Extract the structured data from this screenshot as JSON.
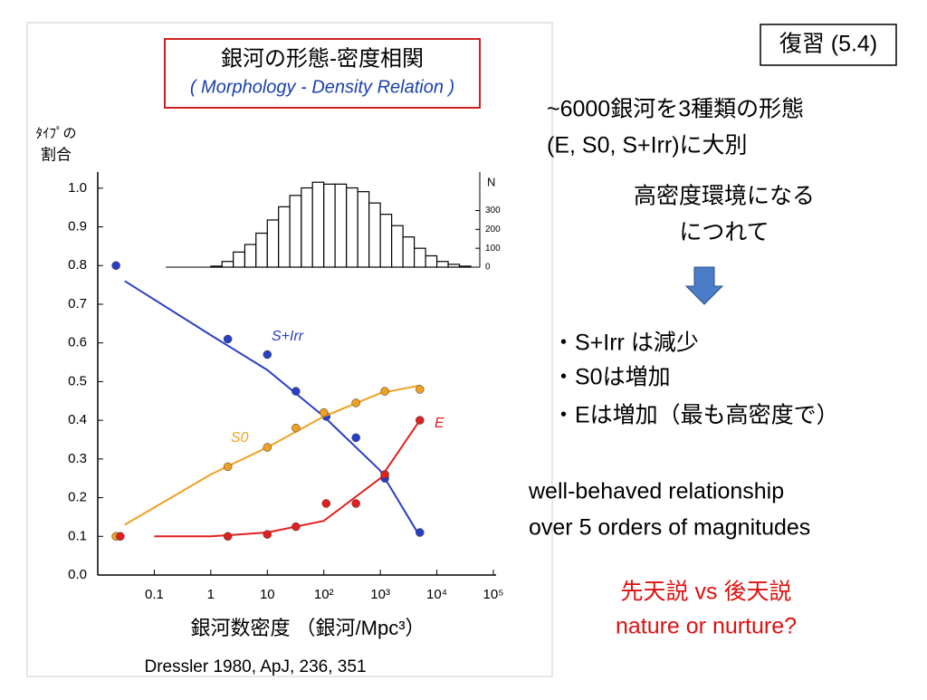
{
  "slide": {
    "tag": "復習 (5.4)",
    "lines": [
      "~6000銀河を3種類の形態",
      "(E,  S0, S+Irr)に大別",
      "高密度環境になる",
      "につれて"
    ],
    "bullets": [
      "・S+Irr は減少",
      "・S0は増加",
      "・Eは増加（最も高密度で）"
    ],
    "note": [
      "well-behaved relationship",
      "over 5 orders of magnitudes"
    ],
    "question": [
      "先天説  vs 後天説",
      "nature or nurture?"
    ],
    "citation": "Dressler 1980, ApJ, 236, 351"
  },
  "chart_data": {
    "type": "scatter",
    "title": "銀河の形態-密度相関",
    "subtitle": "( Morphology - Density Relation )",
    "y_label": [
      "ﾀｲﾌﾟの",
      "割合"
    ],
    "x_label": "銀河数密度 （銀河/Mpc³）",
    "log_x": true,
    "xlim": [
      0.01,
      100000
    ],
    "ylim": [
      0,
      1.03
    ],
    "xticks": [
      0.1,
      1,
      10,
      {
        "value": 100,
        "label": "10²"
      },
      {
        "value": 1000,
        "label": "10³"
      },
      {
        "value": 10000,
        "label": "10⁴"
      },
      {
        "value": 100000,
        "label": "10⁵"
      }
    ],
    "yticks": [
      {
        "value": 0,
        "label": "0.0"
      },
      0.1,
      0.2,
      0.3,
      0.4,
      0.5,
      0.6,
      0.7,
      0.8,
      0.9,
      {
        "value": 1,
        "label": "1.0"
      }
    ],
    "series": [
      {
        "name": "S+Irr",
        "color": "#2a3fc8",
        "x": [
          0.021,
          2,
          10,
          32,
          110,
          370,
          1200,
          5000
        ],
        "values": [
          0.8,
          0.61,
          0.57,
          0.475,
          0.41,
          0.355,
          0.25,
          0.11
        ],
        "fit": {
          "x": [
            0.03,
            1,
            10,
            100,
            1000,
            5000
          ],
          "values": [
            0.76,
            0.62,
            0.53,
            0.41,
            0.27,
            0.1
          ]
        }
      },
      {
        "name": "S0",
        "color": "#f0a020",
        "x": [
          0.021,
          2,
          10,
          32,
          100,
          370,
          1200,
          5000
        ],
        "values": [
          0.1,
          0.28,
          0.33,
          0.38,
          0.42,
          0.445,
          0.475,
          0.48
        ],
        "fit": {
          "x": [
            0.03,
            1,
            10,
            100,
            1000,
            5000
          ],
          "values": [
            0.13,
            0.26,
            0.33,
            0.41,
            0.47,
            0.49
          ]
        }
      },
      {
        "name": "E",
        "color": "#e02020",
        "x": [
          0.025,
          2,
          10,
          32,
          110,
          370,
          1200,
          5000
        ],
        "values": [
          0.1,
          0.1,
          0.105,
          0.125,
          0.185,
          0.185,
          0.26,
          0.4
        ],
        "fit": {
          "x": [
            0.1,
            1,
            10,
            100,
            1000,
            5000
          ],
          "values": [
            0.1,
            0.1,
            0.11,
            0.14,
            0.25,
            0.4
          ]
        }
      }
    ],
    "inset": {
      "type": "histogram",
      "y_label": "N",
      "ylim": [
        0,
        480
      ],
      "yticks": [
        0,
        100,
        200,
        300
      ],
      "bins": [
        1,
        1.58,
        2.5,
        4,
        6.3,
        10,
        15.8,
        25,
        40,
        63,
        100,
        158,
        251,
        398,
        631,
        1000,
        1585,
        2512,
        3981,
        6310,
        10000,
        15849,
        25119,
        39811
      ],
      "counts": [
        5,
        30,
        80,
        120,
        180,
        250,
        320,
        380,
        420,
        450,
        440,
        440,
        420,
        400,
        340,
        280,
        220,
        160,
        100,
        60,
        30,
        15,
        5
      ]
    }
  }
}
